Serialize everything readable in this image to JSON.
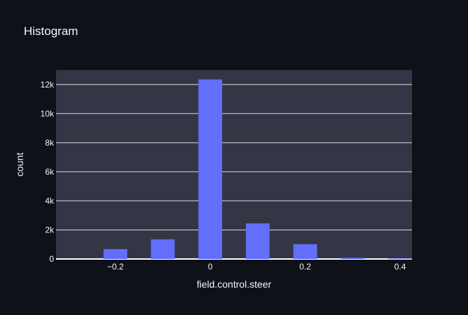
{
  "chart_data": {
    "type": "bar",
    "title": "Histogram",
    "xlabel": "field.control.steer",
    "ylabel": "count",
    "x_centers": [
      -0.2,
      -0.1,
      0,
      0.1,
      0.2,
      0.3,
      0.4
    ],
    "bin_width": 0.1,
    "values": [
      680,
      1350,
      12350,
      2450,
      1020,
      80,
      30
    ],
    "xlim": [
      -0.325,
      0.425
    ],
    "ylim": [
      0,
      13000
    ],
    "x_ticks": [
      -0.2,
      0,
      0.2,
      0.4
    ],
    "x_tick_labels": [
      "−0.2",
      "0",
      "0.2",
      "0.4"
    ],
    "y_ticks": [
      0,
      2000,
      4000,
      6000,
      8000,
      10000,
      12000
    ],
    "y_tick_labels": [
      "0",
      "2k",
      "4k",
      "6k",
      "8k",
      "10k",
      "12k"
    ],
    "grid": true,
    "colors": {
      "background": "#0e1118",
      "plot_background": "#333644",
      "bar": "#636efa",
      "grid": "#d8dbe3",
      "text": "#f2f5fa"
    }
  }
}
